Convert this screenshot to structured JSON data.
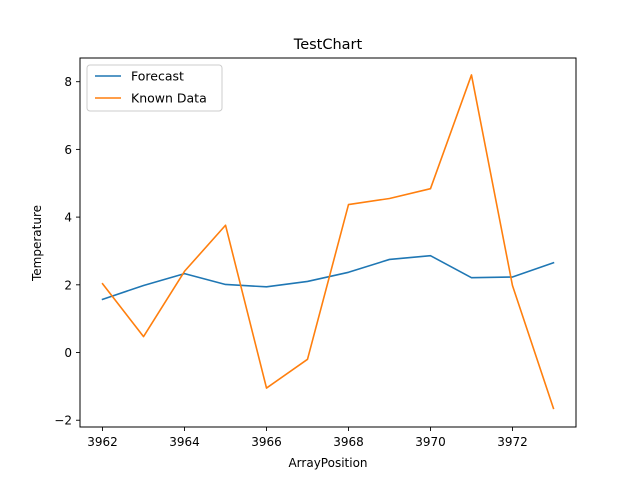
{
  "chart_data": {
    "type": "line",
    "title": "TestChart",
    "xlabel": "ArrayPosition",
    "ylabel": "Temperature",
    "x": [
      3962,
      3963,
      3964,
      3965,
      3966,
      3967,
      3968,
      3969,
      3970,
      3971,
      3972,
      3973
    ],
    "xlim": [
      3961.45,
      3973.55
    ],
    "ylim": [
      -2.2,
      8.7
    ],
    "xticks": [
      3962,
      3964,
      3966,
      3968,
      3970,
      3972
    ],
    "yticks": [
      -2,
      0,
      2,
      4,
      6,
      8
    ],
    "grid": false,
    "legend_position": "top-left",
    "series": [
      {
        "name": "Forecast",
        "color": "#1f77b4",
        "values": [
          1.57,
          1.98,
          2.33,
          2.01,
          1.94,
          2.1,
          2.37,
          2.75,
          2.86,
          2.21,
          2.23,
          2.65
        ]
      },
      {
        "name": "Known Data",
        "color": "#ff7f0e",
        "values": [
          2.03,
          0.47,
          2.4,
          3.76,
          -1.05,
          -0.2,
          4.37,
          4.55,
          4.84,
          8.2,
          1.98,
          -1.65
        ]
      }
    ]
  }
}
